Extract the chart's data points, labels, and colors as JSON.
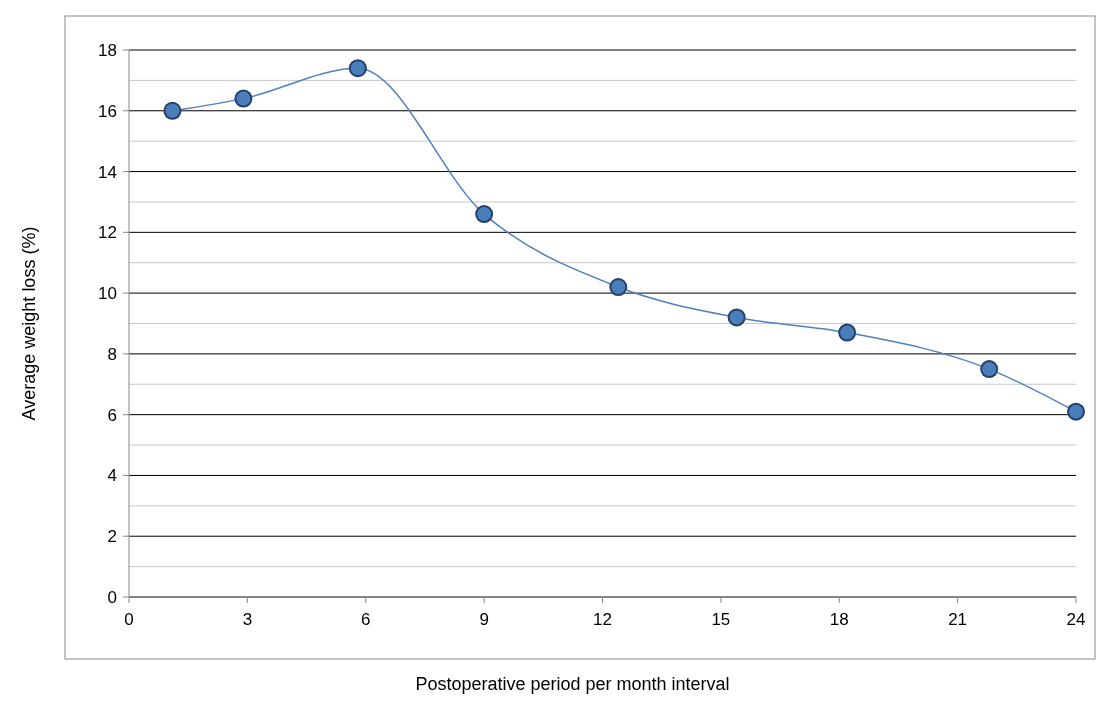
{
  "chart_data": {
    "type": "line",
    "xlabel": "Postoperative period per month interval",
    "ylabel": "Average weight loss (%)",
    "x": [
      1.1,
      2.9,
      5.8,
      9.0,
      12.4,
      15.4,
      18.2,
      21.8,
      24.0
    ],
    "series": [
      {
        "color": "#4f81bd",
        "values": [
          16.0,
          16.4,
          17.4,
          12.6,
          10.2,
          9.2,
          8.7,
          7.5,
          6.1
        ]
      }
    ],
    "xlim": [
      0,
      24
    ],
    "xticks": [
      0,
      3,
      6,
      9,
      12,
      15,
      18,
      21,
      24
    ],
    "ylim": [
      0,
      18
    ],
    "yticks": [
      0,
      2,
      4,
      6,
      8,
      10,
      12,
      14,
      16,
      18
    ],
    "grid": "y",
    "marker": "circle",
    "line_style": "solid"
  }
}
